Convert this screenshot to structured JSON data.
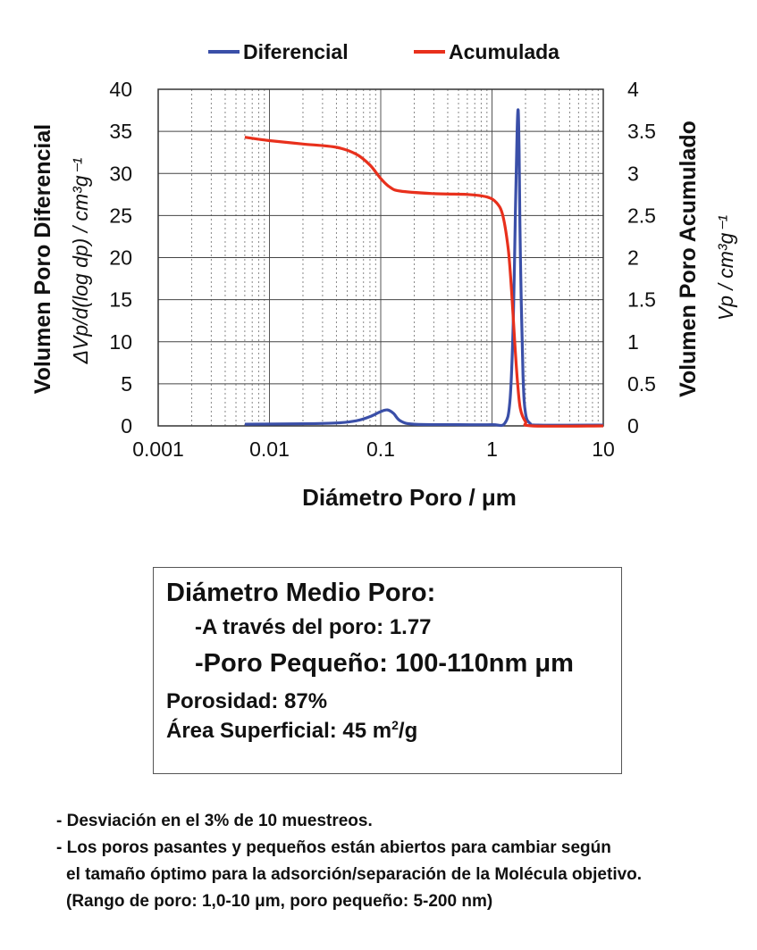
{
  "chart_data": {
    "type": "line",
    "x_scale": "log",
    "xlim": [
      0.001,
      10
    ],
    "x_ticks": [
      "0.001",
      "0.01",
      "0.1",
      "1",
      "10"
    ],
    "xlabel": "Diámetro Poro / μm",
    "y_left": {
      "ylim": [
        0,
        40
      ],
      "ticks": [
        "0",
        "5",
        "10",
        "15",
        "20",
        "25",
        "30",
        "35",
        "40"
      ],
      "label_main": "Volumen Poro Diferencial",
      "label_expr": "ΔVp/d(log dp) / cm³g⁻¹"
    },
    "y_right": {
      "ylim": [
        0,
        4
      ],
      "ticks": [
        "0",
        "0.5",
        "1",
        "1.5",
        "2",
        "2.5",
        "3",
        "3.5",
        "4"
      ],
      "label_main": "Volumen Poro Acumulado",
      "label_expr": "Vp / cm³g⁻¹"
    },
    "grid": true,
    "legend_position": "top",
    "series": [
      {
        "name": "Diferencial",
        "axis": "left",
        "color": "#3a4fa8",
        "points": [
          [
            0.006,
            0.2
          ],
          [
            0.02,
            0.25
          ],
          [
            0.04,
            0.35
          ],
          [
            0.06,
            0.6
          ],
          [
            0.08,
            1.1
          ],
          [
            0.1,
            1.7
          ],
          [
            0.115,
            1.9
          ],
          [
            0.13,
            1.5
          ],
          [
            0.15,
            0.6
          ],
          [
            0.2,
            0.2
          ],
          [
            0.5,
            0.15
          ],
          [
            1.0,
            0.15
          ],
          [
            1.3,
            0.3
          ],
          [
            1.45,
            3.0
          ],
          [
            1.55,
            12
          ],
          [
            1.62,
            25
          ],
          [
            1.68,
            35
          ],
          [
            1.72,
            37.5
          ],
          [
            1.75,
            33
          ],
          [
            1.8,
            20
          ],
          [
            1.9,
            6
          ],
          [
            2.0,
            1.5
          ],
          [
            2.2,
            0.3
          ],
          [
            2.6,
            0.1
          ],
          [
            10,
            0.1
          ]
        ]
      },
      {
        "name": "Acumulada",
        "axis": "right",
        "color": "#e8301c",
        "points": [
          [
            0.006,
            3.43
          ],
          [
            0.01,
            3.39
          ],
          [
            0.02,
            3.35
          ],
          [
            0.04,
            3.31
          ],
          [
            0.06,
            3.23
          ],
          [
            0.08,
            3.1
          ],
          [
            0.1,
            2.94
          ],
          [
            0.12,
            2.84
          ],
          [
            0.15,
            2.79
          ],
          [
            0.3,
            2.76
          ],
          [
            0.6,
            2.75
          ],
          [
            0.9,
            2.72
          ],
          [
            1.1,
            2.65
          ],
          [
            1.25,
            2.5
          ],
          [
            1.4,
            2.1
          ],
          [
            1.5,
            1.6
          ],
          [
            1.6,
            1.0
          ],
          [
            1.7,
            0.5
          ],
          [
            1.8,
            0.2
          ],
          [
            2.0,
            0.05
          ],
          [
            2.3,
            0.0
          ],
          [
            10,
            0.0
          ]
        ]
      }
    ]
  },
  "info_box": {
    "title": "Diámetro Medio Poro:",
    "through_pore": "-A través del poro: 1.77",
    "small_pore": "-Poro Pequeño: 100-110nm μm",
    "porosity": "Porosidad: 87%",
    "surface_area_prefix": "Área Superficial: 45 m",
    "surface_area_sup": "2",
    "surface_area_suffix": "/g"
  },
  "notes": [
    "- Desviación en el 3% de 10 muestreos.",
    "- Los poros pasantes y pequeños están abiertos para cambiar según",
    "el tamaño óptimo para la adsorción/separación de la Molécula objetivo.",
    "(Rango de poro: 1,0-10 μm, poro pequeño: 5-200 nm)"
  ]
}
